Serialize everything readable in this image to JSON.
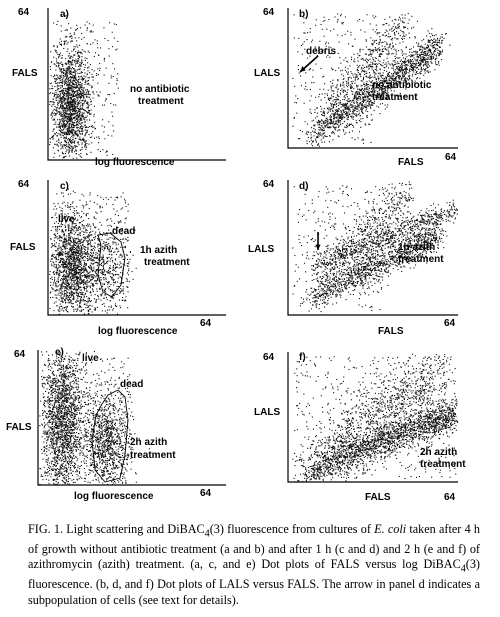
{
  "panels": [
    {
      "id": "a",
      "panel_label": "a)",
      "axis_max_y": "64",
      "axis_max_x": "",
      "ylabel": "FALS",
      "xlabel": "log fluorescence",
      "annotations": [
        "no antibiotic",
        "treatment"
      ],
      "subpop_labels": [],
      "has_arrow": false,
      "has_gate": false
    },
    {
      "id": "b",
      "panel_label": "b)",
      "axis_max_y": "64",
      "axis_max_x": "64",
      "ylabel": "LALS",
      "xlabel": "FALS",
      "annotations": [
        "no antibiotic",
        "treatment"
      ],
      "subpop_labels": [
        "debris"
      ],
      "has_arrow": true,
      "has_gate": false
    },
    {
      "id": "c",
      "panel_label": "c)",
      "axis_max_y": "64",
      "axis_max_x": "64",
      "ylabel": "FALS",
      "xlabel": "log fluorescence",
      "annotations": [
        "1h azith",
        "treatment"
      ],
      "subpop_labels": [
        "live",
        "dead"
      ],
      "has_arrow": false,
      "has_gate": true
    },
    {
      "id": "d",
      "panel_label": "d)",
      "axis_max_y": "64",
      "axis_max_x": "64",
      "ylabel": "LALS",
      "xlabel": "FALS",
      "annotations": [
        "1h azith",
        "treatment"
      ],
      "subpop_labels": [],
      "has_arrow": true,
      "has_gate": false
    },
    {
      "id": "e",
      "panel_label": "e)",
      "axis_max_y": "64",
      "axis_max_x": "64",
      "ylabel": "FALS",
      "xlabel": "log fluorescence",
      "annotations": [
        "2h azith",
        "treatment"
      ],
      "subpop_labels": [
        "live",
        "dead"
      ],
      "has_arrow": false,
      "has_gate": true
    },
    {
      "id": "f",
      "panel_label": "f)",
      "axis_max_y": "64",
      "axis_max_x": "64",
      "ylabel": "LALS",
      "xlabel": "FALS",
      "annotations": [
        "2h azith",
        "treatment"
      ],
      "subpop_labels": [],
      "has_arrow": false,
      "has_gate": false
    }
  ],
  "caption": {
    "part1": "FIG. 1. Light scattering and DiBAC",
    "sub1": "4",
    "part2": "(3) fluorescence from cultures of ",
    "italic": "E. coli",
    "part3": " taken after 4 h of growth without antibiotic treatment (a and b) and after 1 h (c and d) and 2 h (e and f) of azithromycin (azith) treatment. (a, c, and e) Dot plots of FALS versus log DiBAC",
    "sub2": "4",
    "part4": "(3) fluorescence. (b, d, and f) Dot plots of LALS versus FALS. The arrow in panel d indicates a subpopulation of cells (see text for details)."
  }
}
